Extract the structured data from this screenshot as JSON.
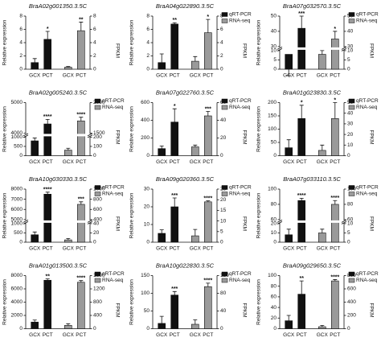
{
  "chart_data": [
    {
      "type": "bar",
      "title": "BraA02g001350.3.5C",
      "ylabel": "Relative expression",
      "y2label": "FPKM",
      "categories": [
        "GCX",
        "PCT"
      ],
      "ylim": [
        0,
        8
      ],
      "yticks": [
        0,
        2,
        4,
        6,
        8
      ],
      "y2lim": [
        0,
        8
      ],
      "y2ticks": [
        0,
        2,
        4,
        6,
        8
      ],
      "series": [
        {
          "color": "#111111",
          "values": [
            1,
            4.5
          ],
          "errors": [
            0.6,
            1.2
          ],
          "stars": [
            null,
            "*"
          ]
        },
        {
          "color": "#9a9a9a",
          "axis": "y2",
          "values": [
            0.3,
            5.8
          ],
          "errors": [
            0.1,
            1.3
          ],
          "stars": [
            null,
            "**"
          ]
        }
      ]
    },
    {
      "type": "bar",
      "title": "BraA04g022890.3.5C",
      "ylabel": "Relative expression",
      "y2label": "FPKM",
      "categories": [
        "GCX",
        "PCT"
      ],
      "ylim": [
        0,
        8
      ],
      "yticks": [
        0,
        2,
        4,
        6,
        8
      ],
      "y2lim": [
        0,
        8
      ],
      "y2ticks": [
        0,
        2,
        4,
        6,
        8
      ],
      "series": [
        {
          "name": "qRT-PCR",
          "color": "#111111",
          "values": [
            1,
            6.8
          ],
          "errors": [
            1.3,
            0.2
          ],
          "stars": [
            null,
            "**"
          ]
        },
        {
          "name": "RNA-seq",
          "color": "#9a9a9a",
          "axis": "y2",
          "values": [
            1.2,
            5.5
          ],
          "errors": [
            0.7,
            2
          ],
          "stars": [
            null,
            "*"
          ]
        }
      ]
    },
    {
      "type": "bar",
      "title": "BraA07g032570.3.5C",
      "ylabel": "Relative expression",
      "y2label": "FPKM",
      "categories": [
        "GCX",
        "PCT"
      ],
      "ylim": [
        0,
        50
      ],
      "ybreak": [
        10,
        30
      ],
      "yticks": [
        0,
        5,
        10,
        30,
        40,
        50
      ],
      "y2lim": [
        0,
        50
      ],
      "y2break": [
        10,
        30
      ],
      "y2ticks": [
        0,
        5,
        10,
        30,
        40,
        50
      ],
      "series": [
        {
          "name": "qRT-PCR",
          "color": "#111111",
          "values": [
            8,
            42
          ],
          "errors": [
            3,
            8
          ],
          "stars": [
            null,
            "***"
          ]
        },
        {
          "name": "RNA-seq",
          "color": "#9a9a9a",
          "axis": "y2",
          "values": [
            8,
            35
          ],
          "errors": [
            2,
            5
          ],
          "stars": [
            null,
            "*"
          ]
        }
      ]
    },
    {
      "type": "bar",
      "title": "BraA02g005240.3.5C",
      "ylabel": "Relative expression",
      "y2label": "FPKM",
      "categories": [
        "GCX",
        "PCT"
      ],
      "ylim": [
        0,
        5000
      ],
      "ybreak": [
        1000,
        4000
      ],
      "yticks": [
        0,
        500,
        1000,
        4000,
        5000
      ],
      "y2lim": [
        0,
        2000
      ],
      "y2break": [
        200,
        1500
      ],
      "y2ticks": [
        0,
        100,
        200,
        1500,
        2000
      ],
      "series": [
        {
          "name": "qRT-PCR",
          "color": "#111111",
          "values": [
            800,
            4300
          ],
          "errors": [
            150,
            150
          ],
          "stars": [
            null,
            "****"
          ]
        },
        {
          "name": "RNA-seq",
          "color": "#9a9a9a",
          "axis": "y2",
          "values": [
            60,
            1700
          ],
          "errors": [
            20,
            60
          ],
          "stars": [
            null,
            "****"
          ]
        }
      ]
    },
    {
      "type": "bar",
      "title": "BraA07g022760.3.5C",
      "ylabel": "Relative expression",
      "y2label": "FPKM",
      "categories": [
        "GCX",
        "PCT"
      ],
      "ylim": [
        0,
        600
      ],
      "yticks": [
        0,
        200,
        400,
        600
      ],
      "y2lim": [
        0,
        60
      ],
      "y2ticks": [
        0,
        20,
        40,
        60
      ],
      "series": [
        {
          "name": "qRT-PCR",
          "color": "#111111",
          "values": [
            80,
            380
          ],
          "errors": [
            30,
            150
          ],
          "stars": [
            null,
            "*"
          ]
        },
        {
          "name": "RNA-seq",
          "color": "#9a9a9a",
          "axis": "y2",
          "values": [
            10,
            45
          ],
          "errors": [
            2,
            5
          ],
          "stars": [
            null,
            "***"
          ]
        }
      ]
    },
    {
      "type": "bar",
      "title": "BraA01g023830.3.5C",
      "ylabel": "Relative expression",
      "y2label": "FPKM",
      "categories": [
        "GCX",
        "PCT"
      ],
      "ylim": [
        0,
        200
      ],
      "yticks": [
        0,
        50,
        100,
        150,
        200
      ],
      "y2lim": [
        0,
        50
      ],
      "y2ticks": [
        0,
        10,
        20,
        30,
        40,
        50
      ],
      "series": [
        {
          "name": "qRT-PCR",
          "color": "#111111",
          "values": [
            30,
            140
          ],
          "errors": [
            30,
            50
          ],
          "stars": [
            null,
            "*"
          ]
        },
        {
          "name": "RNA-seq",
          "color": "#9a9a9a",
          "axis": "y2",
          "values": [
            5,
            35
          ],
          "errors": [
            5,
            15
          ],
          "stars": [
            null,
            "*"
          ]
        }
      ]
    },
    {
      "type": "bar",
      "title": "BraA10g030330.3.5C",
      "ylabel": "Relative expression",
      "y2label": "FPKM",
      "categories": [
        "GCX",
        "PCT"
      ],
      "ylim": [
        0,
        8000
      ],
      "ybreak": [
        1000,
        5000
      ],
      "yticks": [
        0,
        500,
        1000,
        5000,
        6000,
        7000,
        8000
      ],
      "y2lim": [
        0,
        1000
      ],
      "y2break": [
        40,
        400
      ],
      "y2ticks": [
        0,
        20,
        40,
        400,
        600,
        800,
        1000
      ],
      "series": [
        {
          "name": "qRT-PCR",
          "color": "#111111",
          "values": [
            400,
            7500
          ],
          "errors": [
            150,
            200
          ],
          "stars": [
            null,
            "****"
          ]
        },
        {
          "name": "RNA-seq",
          "color": "#9a9a9a",
          "axis": "y2",
          "values": [
            5,
            700
          ],
          "errors": [
            3,
            50
          ],
          "stars": [
            null,
            "***"
          ]
        }
      ]
    },
    {
      "type": "bar",
      "title": "BraA09g020360.3.5C",
      "ylabel": "Relative expression",
      "y2label": "FPKM",
      "categories": [
        "GCX",
        "PCT"
      ],
      "ylim": [
        0,
        30
      ],
      "yticks": [
        0,
        10,
        20,
        30
      ],
      "y2lim": [
        0,
        25
      ],
      "y2ticks": [
        0,
        5,
        10,
        15,
        20,
        25
      ],
      "series": [
        {
          "name": "qRT-PCR",
          "color": "#111111",
          "values": [
            5,
            20
          ],
          "errors": [
            2,
            5
          ],
          "stars": [
            null,
            "***"
          ]
        },
        {
          "name": "RNA-seq",
          "color": "#9a9a9a",
          "axis": "y2",
          "values": [
            3,
            19
          ],
          "errors": [
            3,
            0.5
          ],
          "stars": [
            null,
            "****"
          ]
        }
      ]
    },
    {
      "type": "bar",
      "title": "BraA07g033110.3.5C",
      "ylabel": "Relative expression",
      "y2label": "FPKM",
      "categories": [
        "GCX",
        "PCT"
      ],
      "ylim": [
        0,
        100
      ],
      "ybreak": [
        20,
        60
      ],
      "yticks": [
        0,
        10,
        20,
        60,
        80,
        100
      ],
      "y2lim": [
        0,
        100
      ],
      "y2break": [
        10,
        60
      ],
      "y2ticks": [
        0,
        5,
        10,
        60,
        80,
        100
      ],
      "series": [
        {
          "name": "qRT-PCR",
          "color": "#111111",
          "values": [
            8,
            85
          ],
          "errors": [
            6,
            3
          ],
          "stars": [
            null,
            "****"
          ]
        },
        {
          "name": "RNA-seq",
          "color": "#9a9a9a",
          "axis": "y2",
          "values": [
            5,
            80
          ],
          "errors": [
            2,
            5
          ],
          "stars": [
            null,
            "****"
          ]
        }
      ]
    },
    {
      "type": "bar",
      "title": "BraA01g013500.3.5C",
      "ylabel": "Relative expression",
      "y2label": "FPKM",
      "categories": [
        "GCX",
        "PCT"
      ],
      "ylim": [
        0,
        8000
      ],
      "yticks": [
        0,
        2000,
        4000,
        6000,
        8000
      ],
      "y2lim": [
        0,
        1600
      ],
      "y2ticks": [
        0,
        400,
        800,
        1200,
        1600
      ],
      "series": [
        {
          "name": "qRT-PCR",
          "color": "#111111",
          "values": [
            1000,
            7300
          ],
          "errors": [
            300,
            200
          ],
          "stars": [
            null,
            "**"
          ]
        },
        {
          "name": "RNA-seq",
          "color": "#9a9a9a",
          "axis": "y2",
          "values": [
            100,
            1400
          ],
          "errors": [
            50,
            50
          ],
          "stars": [
            null,
            "****"
          ]
        }
      ]
    },
    {
      "type": "bar",
      "title": "BraA10g022830.3.5C",
      "ylabel": "Relative expression",
      "y2label": "FPKM",
      "categories": [
        "GCX",
        "PCT"
      ],
      "ylim": [
        0,
        150
      ],
      "yticks": [
        0,
        50,
        100,
        150
      ],
      "y2lim": [
        0,
        120
      ],
      "y2ticks": [
        0,
        40,
        80,
        120
      ],
      "series": [
        {
          "name": "qRT-PCR",
          "color": "#111111",
          "values": [
            15,
            95
          ],
          "errors": [
            20,
            10
          ],
          "stars": [
            null,
            "***"
          ]
        },
        {
          "name": "RNA-seq",
          "color": "#9a9a9a",
          "axis": "y2",
          "values": [
            10,
            95
          ],
          "errors": [
            10,
            8
          ],
          "stars": [
            null,
            "****"
          ]
        }
      ]
    },
    {
      "type": "bar",
      "title": "BraA09g029650.3.5C",
      "ylabel": "Relative expression",
      "y2label": "FPKM",
      "categories": [
        "GCX",
        "PCT"
      ],
      "ylim": [
        0,
        100
      ],
      "yticks": [
        0,
        20,
        40,
        60,
        80,
        100
      ],
      "y2lim": [
        0,
        800
      ],
      "y2ticks": [
        0,
        200,
        400,
        600,
        800
      ],
      "series": [
        {
          "name": "qRT-PCR",
          "color": "#111111",
          "values": [
            15,
            65
          ],
          "errors": [
            10,
            25
          ],
          "stars": [
            null,
            "**"
          ]
        },
        {
          "name": "RNA-seq",
          "color": "#9a9a9a",
          "axis": "y2",
          "values": [
            30,
            720
          ],
          "errors": [
            20,
            20
          ],
          "stars": [
            null,
            "****"
          ]
        }
      ]
    }
  ]
}
